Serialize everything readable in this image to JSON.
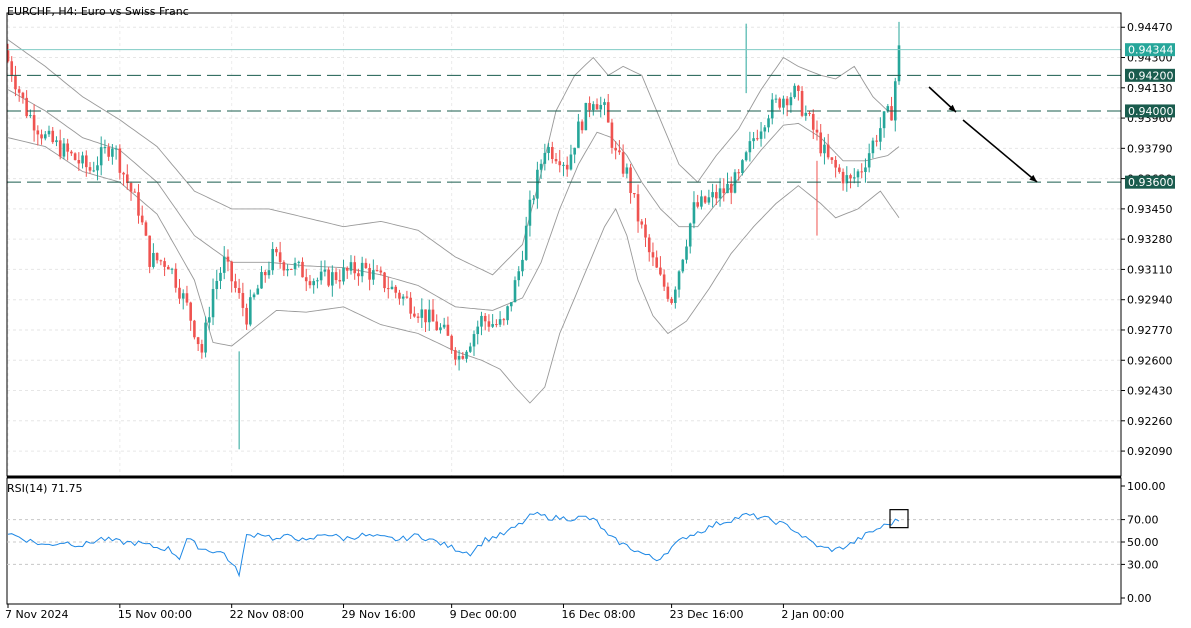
{
  "header": {
    "title": "EURCHF, H4:  Euro vs Swiss Franc"
  },
  "rsi_label": {
    "name": "RSI(14)",
    "value": "71.75"
  },
  "colors": {
    "bull": "#26a69a",
    "bear": "#ef5350",
    "band": "#999999",
    "rsi": "#1e88e5",
    "level_line": "#1a5c4e",
    "price_badge": "#26a69a",
    "arrow": "#000000"
  },
  "chart_data": [
    {
      "type": "candlestick",
      "title": "EURCHF, H4:  Euro vs Swiss Franc",
      "ylim": [
        0.9195,
        0.9455
      ],
      "y_ticks": [
        0.9209,
        0.9226,
        0.9243,
        0.926,
        0.9277,
        0.9294,
        0.9311,
        0.9328,
        0.9345,
        0.9362,
        0.9379,
        0.9396,
        0.9413,
        0.943,
        0.9447
      ],
      "y_tick_labels": [
        "0.92090",
        "0.92260",
        "0.92430",
        "0.92600",
        "0.92770",
        "0.92940",
        "0.93110",
        "0.93280",
        "0.93450",
        "0.93620",
        "0.93790",
        "0.93960",
        "0.94130",
        "0.94300",
        "0.94470"
      ],
      "x_tick_labels": [
        "7 Nov 2024",
        "15 Nov 00:00",
        "22 Nov 08:00",
        "29 Nov 16:00",
        "9 Dec 00:00",
        "16 Dec 08:00",
        "23 Dec 16:00",
        "2 Jan 00:00"
      ],
      "current_price": {
        "value": 0.94344,
        "label": "0.94344"
      },
      "horizontal_levels": [
        {
          "value": 0.942,
          "label": "0.94200"
        },
        {
          "value": 0.94,
          "label": "0.94000"
        },
        {
          "value": 0.936,
          "label": "0.93600"
        }
      ],
      "path_anchors": [
        [
          0,
          0.9428
        ],
        [
          5,
          0.94
        ],
        [
          10,
          0.9385
        ],
        [
          16,
          0.9376
        ],
        [
          22,
          0.9367
        ],
        [
          28,
          0.9382
        ],
        [
          31,
          0.9365
        ],
        [
          35,
          0.9345
        ],
        [
          38,
          0.9317
        ],
        [
          43,
          0.9315
        ],
        [
          48,
          0.929
        ],
        [
          52,
          0.9265
        ],
        [
          55,
          0.93
        ],
        [
          58,
          0.9315
        ],
        [
          61,
          0.93
        ],
        [
          64,
          0.9285
        ],
        [
          67,
          0.93
        ],
        [
          71,
          0.9318
        ],
        [
          77,
          0.9312
        ],
        [
          83,
          0.9305
        ],
        [
          89,
          0.9308
        ],
        [
          95,
          0.9312
        ],
        [
          100,
          0.9305
        ],
        [
          106,
          0.9295
        ],
        [
          112,
          0.9285
        ],
        [
          117,
          0.9275
        ],
        [
          121,
          0.9262
        ],
        [
          124,
          0.9272
        ],
        [
          127,
          0.9283
        ],
        [
          131,
          0.928
        ],
        [
          133,
          0.928
        ],
        [
          137,
          0.931
        ],
        [
          140,
          0.9345
        ],
        [
          144,
          0.938
        ],
        [
          148,
          0.9375
        ],
        [
          150,
          0.937
        ],
        [
          153,
          0.939
        ],
        [
          157,
          0.9408
        ],
        [
          160,
          0.94
        ],
        [
          163,
          0.9375
        ],
        [
          166,
          0.9365
        ],
        [
          169,
          0.934
        ],
        [
          172,
          0.932
        ],
        [
          175,
          0.9305
        ],
        [
          178,
          0.9295
        ],
        [
          181,
          0.932
        ],
        [
          184,
          0.9345
        ],
        [
          188,
          0.935
        ],
        [
          192,
          0.9355
        ],
        [
          196,
          0.9362
        ],
        [
          200,
          0.9385
        ],
        [
          204,
          0.94
        ],
        [
          208,
          0.9408
        ],
        [
          211,
          0.941
        ],
        [
          214,
          0.9398
        ],
        [
          217,
          0.9385
        ],
        [
          220,
          0.9372
        ],
        [
          223,
          0.9365
        ],
        [
          226,
          0.936
        ],
        [
          229,
          0.9368
        ],
        [
          232,
          0.9382
        ],
        [
          235,
          0.9395
        ],
        [
          237,
          0.94
        ],
        [
          239,
          0.9434
        ]
      ],
      "bollinger": {
        "upper_anchors": [
          [
            0,
            0.944
          ],
          [
            10,
            0.9425
          ],
          [
            20,
            0.9408
          ],
          [
            30,
            0.9395
          ],
          [
            40,
            0.938
          ],
          [
            50,
            0.9355
          ],
          [
            60,
            0.9345
          ],
          [
            70,
            0.9345
          ],
          [
            80,
            0.934
          ],
          [
            90,
            0.9335
          ],
          [
            100,
            0.9338
          ],
          [
            110,
            0.9333
          ],
          [
            120,
            0.9318
          ],
          [
            130,
            0.9308
          ],
          [
            138,
            0.9325
          ],
          [
            143,
            0.9365
          ],
          [
            147,
            0.94
          ],
          [
            152,
            0.942
          ],
          [
            157,
            0.943
          ],
          [
            161,
            0.942
          ],
          [
            165,
            0.9425
          ],
          [
            170,
            0.942
          ],
          [
            175,
            0.9395
          ],
          [
            180,
            0.937
          ],
          [
            185,
            0.936
          ],
          [
            190,
            0.9375
          ],
          [
            196,
            0.939
          ],
          [
            202,
            0.9412
          ],
          [
            208,
            0.943
          ],
          [
            212,
            0.9425
          ],
          [
            218,
            0.942
          ],
          [
            222,
            0.9418
          ],
          [
            227,
            0.9425
          ],
          [
            232,
            0.9408
          ],
          [
            236,
            0.94
          ],
          [
            239,
            0.94
          ]
        ],
        "middle_anchors": [
          [
            0,
            0.9412
          ],
          [
            10,
            0.94
          ],
          [
            20,
            0.9385
          ],
          [
            30,
            0.9378
          ],
          [
            40,
            0.936
          ],
          [
            50,
            0.933
          ],
          [
            60,
            0.9315
          ],
          [
            70,
            0.9315
          ],
          [
            80,
            0.9313
          ],
          [
            90,
            0.9312
          ],
          [
            100,
            0.9308
          ],
          [
            110,
            0.9302
          ],
          [
            120,
            0.929
          ],
          [
            130,
            0.9288
          ],
          [
            138,
            0.9295
          ],
          [
            143,
            0.9315
          ],
          [
            148,
            0.9345
          ],
          [
            153,
            0.937
          ],
          [
            158,
            0.9388
          ],
          [
            162,
            0.9385
          ],
          [
            166,
            0.9375
          ],
          [
            170,
            0.936
          ],
          [
            175,
            0.9345
          ],
          [
            180,
            0.9335
          ],
          [
            185,
            0.9335
          ],
          [
            190,
            0.9348
          ],
          [
            196,
            0.9362
          ],
          [
            202,
            0.9378
          ],
          [
            208,
            0.9392
          ],
          [
            212,
            0.9393
          ],
          [
            218,
            0.9385
          ],
          [
            224,
            0.9372
          ],
          [
            230,
            0.9372
          ],
          [
            236,
            0.9375
          ],
          [
            239,
            0.938
          ]
        ],
        "lower_anchors": [
          [
            0,
            0.9385
          ],
          [
            10,
            0.938
          ],
          [
            20,
            0.9366
          ],
          [
            30,
            0.936
          ],
          [
            40,
            0.9342
          ],
          [
            50,
            0.9305
          ],
          [
            55,
            0.927
          ],
          [
            60,
            0.9268
          ],
          [
            66,
            0.9278
          ],
          [
            72,
            0.9288
          ],
          [
            80,
            0.9287
          ],
          [
            90,
            0.929
          ],
          [
            100,
            0.928
          ],
          [
            110,
            0.9275
          ],
          [
            120,
            0.9265
          ],
          [
            127,
            0.926
          ],
          [
            132,
            0.9255
          ],
          [
            136,
            0.9245
          ],
          [
            140,
            0.9236
          ],
          [
            144,
            0.9245
          ],
          [
            148,
            0.9275
          ],
          [
            152,
            0.9295
          ],
          [
            156,
            0.9315
          ],
          [
            160,
            0.9335
          ],
          [
            163,
            0.9345
          ],
          [
            166,
            0.933
          ],
          [
            169,
            0.9305
          ],
          [
            173,
            0.9285
          ],
          [
            177,
            0.9275
          ],
          [
            182,
            0.9282
          ],
          [
            188,
            0.93
          ],
          [
            194,
            0.932
          ],
          [
            200,
            0.9335
          ],
          [
            206,
            0.9348
          ],
          [
            212,
            0.9358
          ],
          [
            218,
            0.9348
          ],
          [
            222,
            0.934
          ],
          [
            228,
            0.9345
          ],
          [
            234,
            0.9355
          ],
          [
            239,
            0.934
          ]
        ]
      },
      "annotation": {
        "type": "arrow",
        "direction": "down-right"
      }
    },
    {
      "type": "line",
      "name": "RSI(14)",
      "ylim": [
        0,
        100
      ],
      "y_ticks": [
        0,
        30,
        50,
        70,
        100
      ],
      "y_tick_labels": [
        "0.00",
        "30.00",
        "50.00",
        "70.00",
        "100.00"
      ],
      "last_value": 71.75,
      "anchors": [
        [
          0,
          58
        ],
        [
          5,
          52
        ],
        [
          10,
          47
        ],
        [
          15,
          50
        ],
        [
          20,
          47
        ],
        [
          25,
          53
        ],
        [
          30,
          50
        ],
        [
          35,
          49
        ],
        [
          40,
          45
        ],
        [
          43,
          44
        ],
        [
          46,
          36
        ],
        [
          48,
          53
        ],
        [
          52,
          44
        ],
        [
          55,
          42
        ],
        [
          58,
          40
        ],
        [
          60,
          30
        ],
        [
          62,
          22
        ],
        [
          64,
          55
        ],
        [
          68,
          58
        ],
        [
          72,
          52
        ],
        [
          76,
          56
        ],
        [
          80,
          50
        ],
        [
          85,
          58
        ],
        [
          90,
          53
        ],
        [
          95,
          56
        ],
        [
          100,
          54
        ],
        [
          105,
          52
        ],
        [
          110,
          56
        ],
        [
          115,
          50
        ],
        [
          120,
          44
        ],
        [
          124,
          40
        ],
        [
          128,
          52
        ],
        [
          131,
          55
        ],
        [
          133,
          57
        ],
        [
          137,
          65
        ],
        [
          141,
          75
        ],
        [
          145,
          72
        ],
        [
          150,
          71
        ],
        [
          155,
          72
        ],
        [
          158,
          68
        ],
        [
          161,
          55
        ],
        [
          165,
          48
        ],
        [
          170,
          40
        ],
        [
          174,
          34
        ],
        [
          178,
          45
        ],
        [
          182,
          55
        ],
        [
          186,
          60
        ],
        [
          190,
          66
        ],
        [
          194,
          70
        ],
        [
          198,
          74
        ],
        [
          202,
          72
        ],
        [
          206,
          68
        ],
        [
          210,
          63
        ],
        [
          214,
          53
        ],
        [
          218,
          45
        ],
        [
          222,
          43
        ],
        [
          226,
          48
        ],
        [
          230,
          56
        ],
        [
          234,
          63
        ],
        [
          237,
          67
        ],
        [
          239,
          70
        ]
      ]
    }
  ]
}
